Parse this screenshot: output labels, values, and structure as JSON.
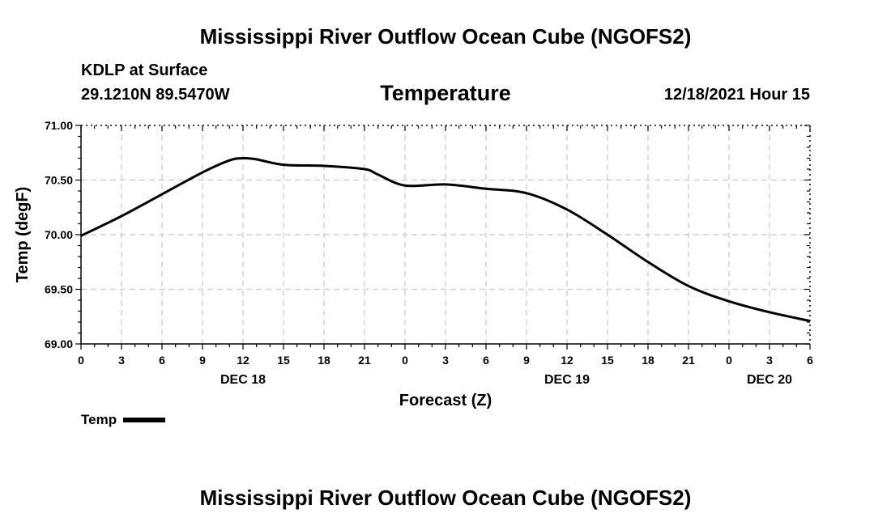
{
  "header": {
    "title": "Mississippi River Outflow Ocean Cube (NGOFS2)",
    "station": "KDLP at Surface",
    "coords": "29.1210N  89.5470W",
    "chart_title": "Temperature",
    "timestamp": "12/18/2021 Hour 15"
  },
  "footer": {
    "title": "Mississippi River Outflow Ocean Cube (NGOFS2)"
  },
  "chart_data": {
    "type": "line",
    "title": "Temperature",
    "xlabel": "Forecast (Z)",
    "ylabel": "Temp (degF)",
    "xlim": [
      0,
      54
    ],
    "ylim": [
      69.0,
      71.0
    ],
    "x_ticks": [
      0,
      3,
      6,
      9,
      12,
      15,
      18,
      21,
      24,
      27,
      30,
      33,
      36,
      39,
      42,
      45,
      48,
      51,
      54
    ],
    "x_tick_labels": [
      "0",
      "3",
      "6",
      "9",
      "12",
      "15",
      "18",
      "21",
      "0",
      "3",
      "6",
      "9",
      "12",
      "15",
      "18",
      "21",
      "0",
      "3",
      "6"
    ],
    "y_ticks": [
      69.0,
      69.5,
      70.0,
      70.5,
      71.0
    ],
    "y_tick_labels": [
      "69.00",
      "69.50",
      "70.00",
      "70.50",
      "71.00"
    ],
    "day_labels": [
      {
        "x": 12,
        "label": "DEC 18"
      },
      {
        "x": 36,
        "label": "DEC 19"
      },
      {
        "x": 51,
        "label": "DEC 20"
      }
    ],
    "grid": true,
    "legend": "bottom-left",
    "series": [
      {
        "name": "Temp",
        "color": "#000000",
        "x": [
          0,
          3,
          6,
          9,
          11,
          12,
          13,
          15,
          18,
          21,
          22,
          24,
          27,
          30,
          33,
          36,
          39,
          42,
          45,
          48,
          51,
          54
        ],
        "values": [
          69.99,
          70.17,
          70.37,
          70.57,
          70.68,
          70.7,
          70.69,
          70.64,
          70.63,
          70.6,
          70.55,
          70.45,
          70.46,
          70.42,
          70.38,
          70.23,
          70.0,
          69.75,
          69.53,
          69.39,
          69.29,
          69.21
        ]
      }
    ]
  }
}
